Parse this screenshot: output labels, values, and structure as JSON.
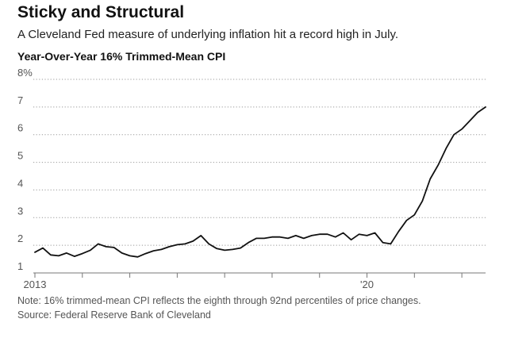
{
  "headline": "Sticky and Structural",
  "subheadline": "A Cleveland Fed measure of underlying inflation hit a record high in July.",
  "note": "Note: 16% trimmed-mean CPI reflects the eighth through 92nd percentiles of price changes.",
  "source": "Source: Federal Reserve Bank of Cleveland",
  "colors": {
    "line": "#111111",
    "gridline": "#999999",
    "baseline": "#777777",
    "tick_text": "#555555"
  },
  "chart_data": {
    "type": "line",
    "title": "Year-Over-Year 16% Trimmed-Mean CPI",
    "xlabel": "",
    "ylabel": "",
    "ylim": [
      1,
      8
    ],
    "y_ticks": [
      2,
      3,
      4,
      5,
      6,
      7,
      8
    ],
    "y_tick_labels": [
      "2",
      "3",
      "4",
      "5",
      "6",
      "7",
      "8%"
    ],
    "y_bottom_label": "1",
    "xlim": [
      "2013-01",
      "2022-07"
    ],
    "x_ticks": [
      "2013-01",
      "2014-01",
      "2015-01",
      "2016-01",
      "2017-01",
      "2018-01",
      "2019-01",
      "2020-01",
      "2021-01",
      "2022-01"
    ],
    "x_tick_labels": [
      "2013",
      "",
      "",
      "",
      "",
      "",
      "",
      "'20",
      "",
      ""
    ],
    "grid": true,
    "legend": "none",
    "series": [
      {
        "x": [
          "2013-01",
          "2013-03",
          "2013-05",
          "2013-07",
          "2013-09",
          "2013-11",
          "2014-01",
          "2014-03",
          "2014-05",
          "2014-07",
          "2014-09",
          "2014-11",
          "2015-01",
          "2015-03",
          "2015-05",
          "2015-07",
          "2015-09",
          "2015-11",
          "2016-01",
          "2016-03",
          "2016-05",
          "2016-07",
          "2016-09",
          "2016-11",
          "2017-01",
          "2017-03",
          "2017-05",
          "2017-07",
          "2017-09",
          "2017-11",
          "2018-01",
          "2018-03",
          "2018-05",
          "2018-07",
          "2018-09",
          "2018-11",
          "2019-01",
          "2019-03",
          "2019-05",
          "2019-07",
          "2019-09",
          "2019-11",
          "2020-01",
          "2020-03",
          "2020-05",
          "2020-07",
          "2020-09",
          "2020-11",
          "2021-01",
          "2021-03",
          "2021-05",
          "2021-07",
          "2021-09",
          "2021-11",
          "2022-01",
          "2022-03",
          "2022-05",
          "2022-07"
        ],
        "values": [
          1.75,
          1.9,
          1.65,
          1.62,
          1.72,
          1.6,
          1.7,
          1.82,
          2.05,
          1.95,
          1.92,
          1.72,
          1.62,
          1.58,
          1.7,
          1.8,
          1.85,
          1.95,
          2.02,
          2.05,
          2.15,
          2.35,
          2.05,
          1.88,
          1.82,
          1.85,
          1.9,
          2.1,
          2.25,
          2.25,
          2.3,
          2.3,
          2.25,
          2.35,
          2.25,
          2.35,
          2.4,
          2.4,
          2.3,
          2.45,
          2.2,
          2.4,
          2.35,
          2.45,
          2.1,
          2.05,
          2.5,
          2.9,
          3.1,
          3.6,
          4.4,
          4.9,
          5.5,
          6.0,
          6.2,
          6.5,
          6.8,
          7.0
        ]
      }
    ]
  }
}
